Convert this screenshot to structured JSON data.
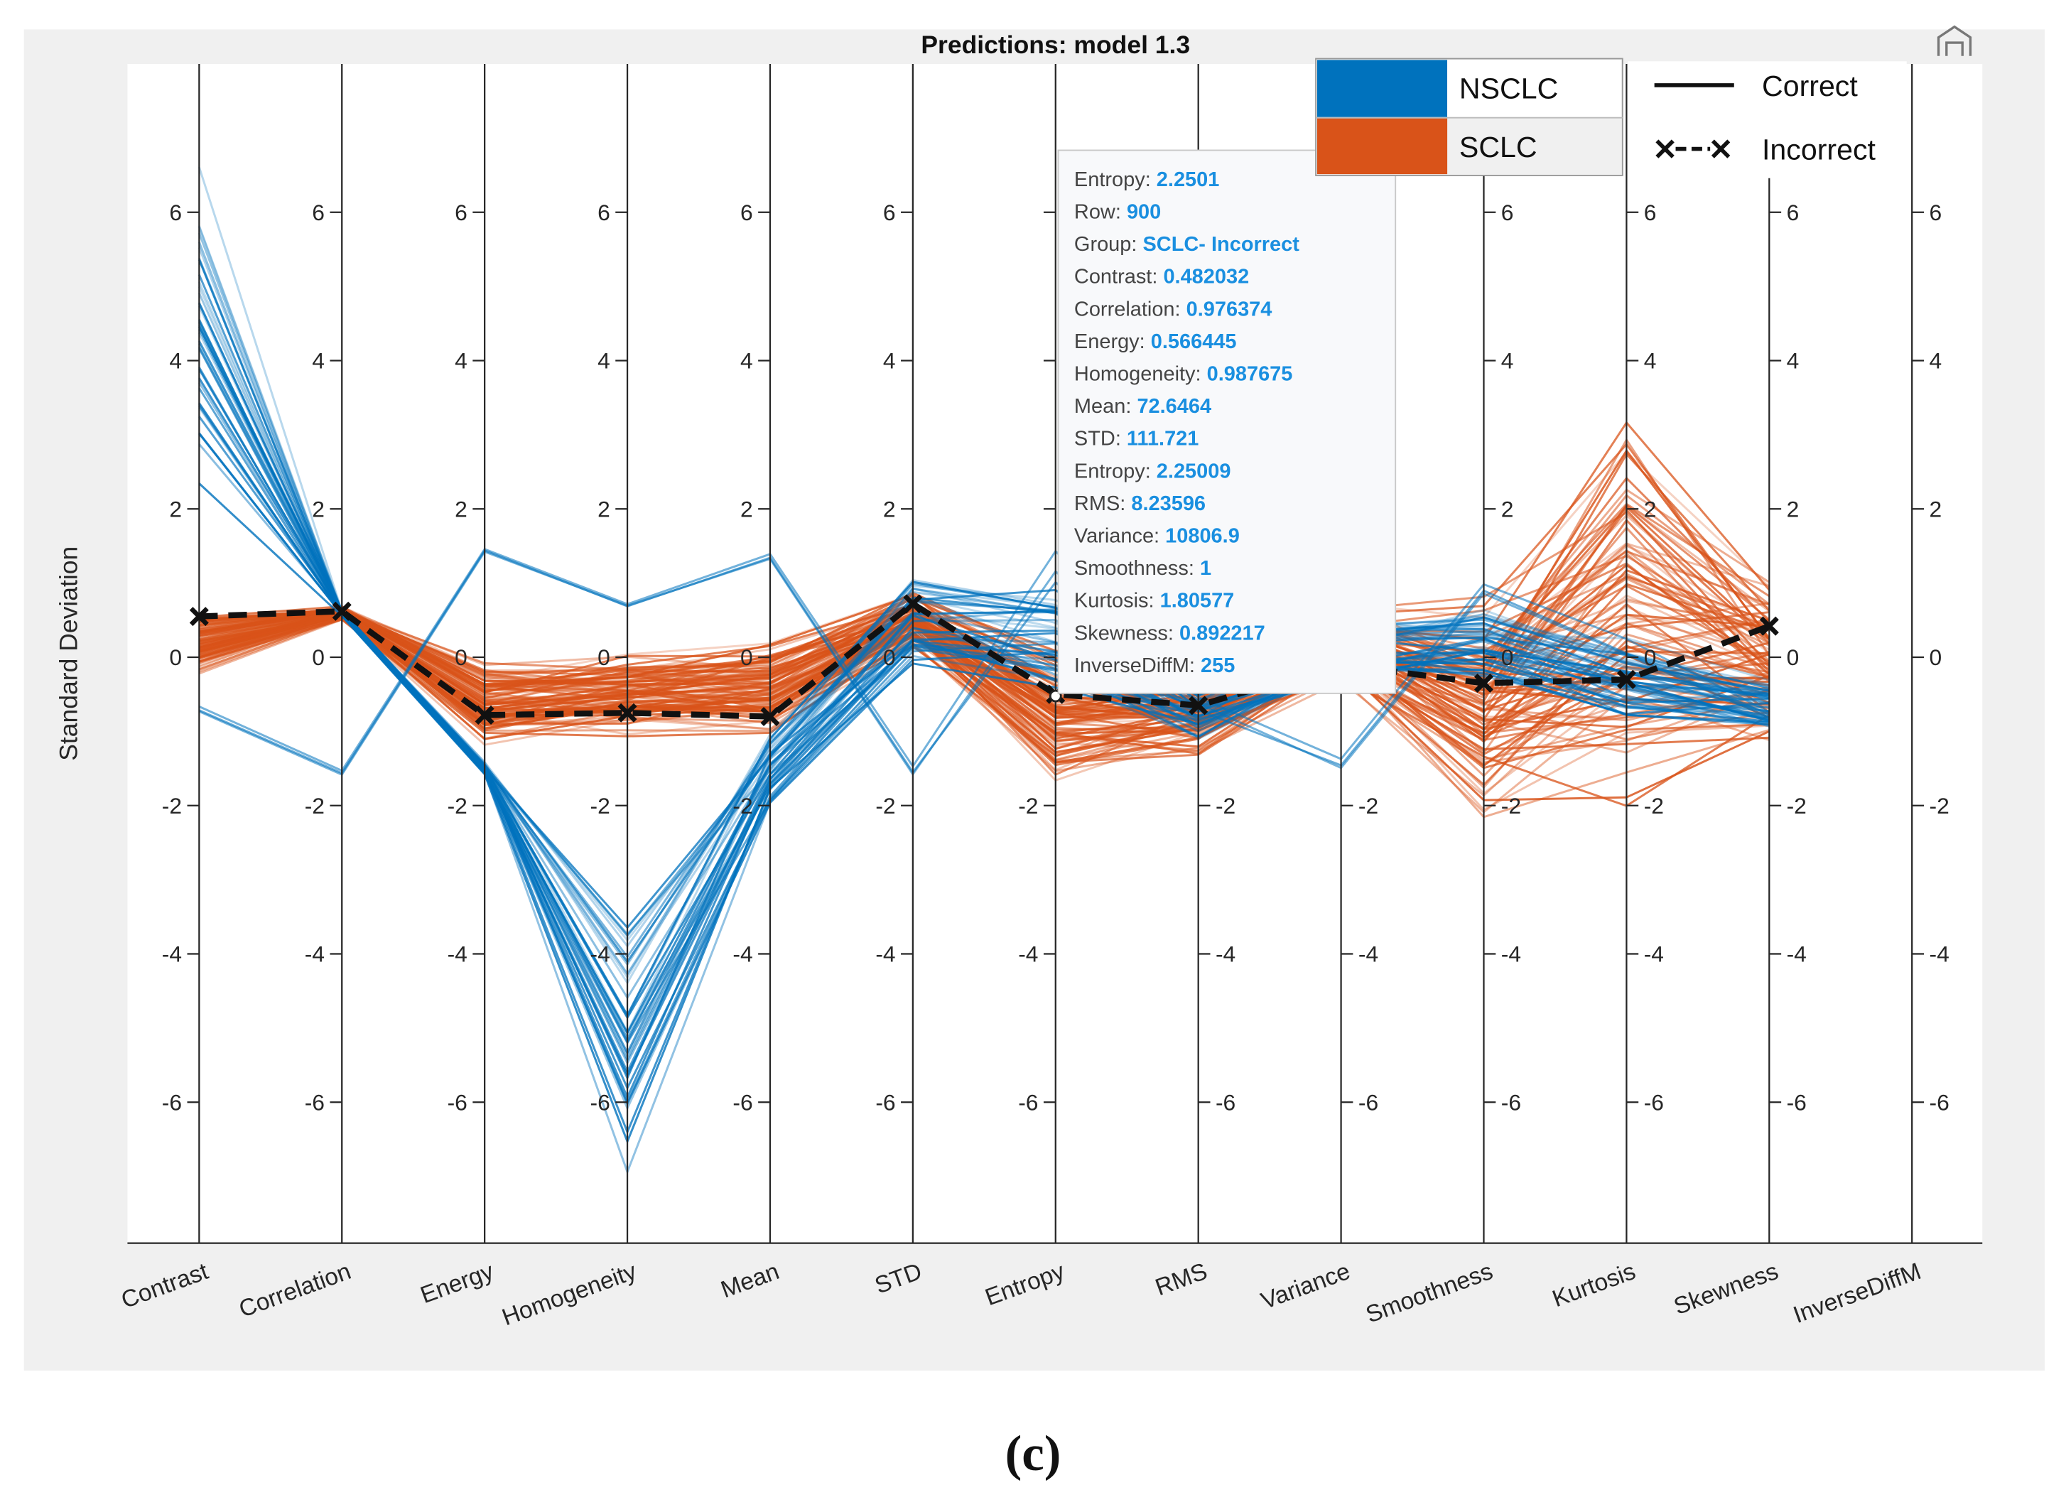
{
  "chart_data": {
    "type": "parallel-coordinates",
    "title": "Predictions: model 1.3",
    "ylabel": "Standard Deviation",
    "ylim": [
      -7.9,
      8.0
    ],
    "yticks": [
      -6,
      -4,
      -2,
      0,
      2,
      4,
      6
    ],
    "grid": false,
    "categories": [
      "Contrast",
      "Correlation",
      "Energy",
      "Homogeneity",
      "Mean",
      "STD",
      "Entropy",
      "RMS",
      "Variance",
      "Smoothness",
      "Kurtosis",
      "Skewness",
      "InverseDiffM"
    ],
    "groups": [
      {
        "name": "SCLC",
        "color": "#d95319",
        "count": 90,
        "center": [
          0.2,
          0.6,
          -0.6,
          -0.5,
          -0.4,
          0.5,
          -0.8,
          -0.7,
          0.2,
          -0.6,
          0.6,
          -0.1,
          null
        ],
        "spread": [
          0.45,
          0.1,
          0.6,
          0.6,
          0.7,
          0.4,
          1.0,
          0.7,
          0.6,
          1.6,
          2.8,
          1.2,
          null
        ]
      },
      {
        "name": "NSCLC",
        "color": "#0072bd",
        "count": 40,
        "center": [
          4.6,
          0.6,
          -1.5,
          -5.0,
          -1.5,
          0.5,
          0.3,
          -0.7,
          0.1,
          0.2,
          -0.3,
          -0.6,
          null
        ],
        "spread": [
          2.3,
          0.05,
          0.1,
          2.0,
          0.6,
          0.8,
          0.8,
          0.5,
          0.5,
          0.6,
          0.6,
          0.4,
          null
        ]
      },
      {
        "name": "NSCLC",
        "color": "#0072bd",
        "count": 3,
        "center": [
          -0.7,
          -1.55,
          1.45,
          0.7,
          1.35,
          -1.55,
          1.2,
          -0.6,
          -1.45,
          0.9,
          0.1,
          -0.75,
          null
        ],
        "spread": [
          0.05,
          0.05,
          0.05,
          0.05,
          0.1,
          0.1,
          0.3,
          0.2,
          0.1,
          0.1,
          0.2,
          0.1,
          null
        ]
      }
    ],
    "incorrect_mean": [
      0.55,
      0.62,
      -0.78,
      -0.75,
      -0.8,
      0.72,
      -0.5,
      -0.65,
      -0.1,
      -0.35,
      -0.3,
      0.42,
      null
    ],
    "legend": {
      "groups": [
        {
          "label": "NSCLC",
          "color": "#0072bd"
        },
        {
          "label": "SCLC",
          "color": "#d95319"
        }
      ],
      "styles": [
        {
          "label": "Correct",
          "marker": "solid-line"
        },
        {
          "label": "Incorrect",
          "marker": "dashed-x"
        }
      ],
      "placement": "top-right"
    },
    "datatip": [
      [
        "Entropy:",
        "2.2501"
      ],
      [
        "Row:",
        "900"
      ],
      [
        "Group:",
        "SCLC- Incorrect"
      ],
      [
        "Contrast:",
        "0.482032"
      ],
      [
        "Correlation:",
        "0.976374"
      ],
      [
        "Energy:",
        "0.566445"
      ],
      [
        "Homogeneity:",
        "0.987675"
      ],
      [
        "Mean:",
        "72.6464"
      ],
      [
        "STD:",
        "111.721"
      ],
      [
        "Entropy:",
        "2.25009"
      ],
      [
        "RMS:",
        "8.23596"
      ],
      [
        "Variance:",
        "10806.9"
      ],
      [
        "Smoothness:",
        "1"
      ],
      [
        "Kurtosis:",
        "1.80577"
      ],
      [
        "Skewness:",
        "0.892217"
      ],
      [
        "InverseDiffM:",
        "255"
      ]
    ]
  },
  "caption": "(c)",
  "toolbar": {
    "icon": "home-icon"
  }
}
